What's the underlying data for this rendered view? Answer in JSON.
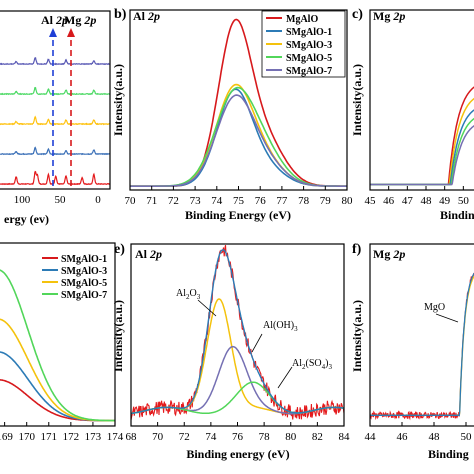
{
  "chart_data": [
    {
      "id": "a",
      "type": "line",
      "panel_label": "",
      "title": "",
      "xlabel": "ergy (ev)",
      "ylabel": "",
      "xlim": [
        -10,
        140
      ],
      "xticks": [
        100,
        50,
        0
      ],
      "reversed_x": true,
      "annotations": [
        {
          "text": "Al 2p",
          "x": 74
        },
        {
          "text": "Mg 2p",
          "x": 50
        }
      ],
      "series": [
        {
          "color": "#e41a1c",
          "offset": 0,
          "peaks": [
            [
              118,
              0.45
            ],
            [
              92,
              0.75
            ],
            [
              89,
              0.55
            ],
            [
              74,
              0.6
            ],
            [
              64,
              0.5
            ],
            [
              50,
              0.5
            ],
            [
              28,
              0.4
            ],
            [
              12,
              0.6
            ]
          ]
        },
        {
          "color": "#3a6fb7",
          "offset": 1,
          "peaks": [
            [
              118,
              0.15
            ],
            [
              92,
              0.4
            ],
            [
              74,
              0.3
            ],
            [
              50,
              0.2
            ],
            [
              12,
              0.25
            ]
          ]
        },
        {
          "color": "#ffc20e",
          "offset": 2,
          "peaks": [
            [
              118,
              0.15
            ],
            [
              92,
              0.45
            ],
            [
              74,
              0.3
            ],
            [
              50,
              0.25
            ],
            [
              12,
              0.25
            ]
          ]
        },
        {
          "color": "#4cd964",
          "offset": 3,
          "peaks": [
            [
              118,
              0.15
            ],
            [
              92,
              0.4
            ],
            [
              74,
              0.3
            ],
            [
              50,
              0.25
            ],
            [
              12,
              0.25
            ]
          ]
        },
        {
          "color": "#5a5ab5",
          "offset": 4,
          "peaks": [
            [
              118,
              0.15
            ],
            [
              92,
              0.4
            ],
            [
              74,
              0.3
            ],
            [
              50,
              0.25
            ],
            [
              12,
              0.2
            ]
          ]
        }
      ]
    },
    {
      "id": "b",
      "type": "line",
      "panel_label": "b)",
      "title": "Al 2p",
      "xlabel": "Binding Energy (eV)",
      "ylabel": "Intensity(a.u.)",
      "xlim": [
        70,
        80
      ],
      "xticks": [
        70,
        71,
        72,
        73,
        74,
        75,
        76,
        77,
        78,
        79,
        80
      ],
      "legend": "top-right",
      "series": [
        {
          "name": "MgAlO",
          "color": "#d7191c",
          "center": 74.8,
          "amp": 1.0,
          "sigma": 0.75,
          "shoulder": 0.3
        },
        {
          "name": "SMgAlO-1",
          "color": "#2c7bb6",
          "center": 74.8,
          "amp": 0.6,
          "sigma": 0.8,
          "shoulder": 0.12
        },
        {
          "name": "SMgAlO-3",
          "color": "#f4c20d",
          "center": 74.8,
          "amp": 0.62,
          "sigma": 0.85,
          "shoulder": 0.15
        },
        {
          "name": "SMgAlO-5",
          "color": "#52d65a",
          "center": 74.8,
          "amp": 0.58,
          "sigma": 0.9,
          "shoulder": 0.2
        },
        {
          "name": "SMgAlO-7",
          "color": "#7570b3",
          "center": 74.8,
          "amp": 0.55,
          "sigma": 0.85,
          "shoulder": 0.15
        }
      ]
    },
    {
      "id": "c",
      "type": "line",
      "panel_label": "c)",
      "title": "Mg 2p",
      "xlabel": "Binding",
      "ylabel": "Intensity(a.u.)",
      "xlim": [
        45,
        51
      ],
      "xticks": [
        45,
        46,
        47,
        48,
        49,
        50
      ],
      "series": [
        {
          "color": "#d7191c",
          "rise": 49.2,
          "scale": 0.72
        },
        {
          "color": "#f4c20d",
          "rise": 49.25,
          "scale": 0.64
        },
        {
          "color": "#2c7bb6",
          "rise": 49.3,
          "scale": 0.56
        },
        {
          "color": "#52d65a",
          "rise": 49.35,
          "scale": 0.5
        },
        {
          "color": "#7570b3",
          "rise": 49.4,
          "scale": 0.45
        }
      ]
    },
    {
      "id": "d",
      "type": "line",
      "panel_label": "",
      "title": "",
      "xlabel": "",
      "ylabel": "",
      "xlim": [
        168.7,
        174
      ],
      "xticks": [
        169,
        170,
        171,
        172,
        173,
        174
      ],
      "legend": "top-right",
      "series": [
        {
          "name": "SMgAlO-1",
          "color": "#d7191c",
          "amp": 0.25
        },
        {
          "name": "SMgAlO-3",
          "color": "#2c7bb6",
          "amp": 0.42
        },
        {
          "name": "SMgAlO-5",
          "color": "#f4c20d",
          "amp": 0.62
        },
        {
          "name": "SMgAlO-7",
          "color": "#52d65a",
          "amp": 0.92
        }
      ]
    },
    {
      "id": "e",
      "type": "line",
      "panel_label": "e)",
      "title": "Al 2p",
      "xlabel": "Binding energy (eV)",
      "ylabel": "Intensity(a.u.)",
      "xlim": [
        68,
        84
      ],
      "xticks": [
        68,
        70,
        72,
        74,
        76,
        78,
        80,
        82,
        84
      ],
      "components": [
        {
          "label": "Al2O3",
          "color": "#f4c20d",
          "center": 74.6,
          "amp": 0.72,
          "sigma": 0.9
        },
        {
          "label": "Al(OH)3",
          "color": "#7570b3",
          "center": 75.6,
          "amp": 0.4,
          "sigma": 1.05
        },
        {
          "label": "Al2(SO4)3",
          "color": "#52d65a",
          "center": 77.2,
          "amp": 0.16,
          "sigma": 1.2
        }
      ],
      "raw_color": "#e41a1c",
      "fit_color": "#2c7bb6"
    },
    {
      "id": "f",
      "type": "line",
      "panel_label": "f)",
      "title": "Mg 2p",
      "xlabel": "Binding",
      "ylabel": "Intensity(a.u.)",
      "xlim": [
        44,
        51
      ],
      "xticks": [
        44,
        46,
        48,
        50
      ],
      "annotations": [
        {
          "text": "MgO"
        }
      ],
      "raw_color": "#e41a1c",
      "fit_color": "#2c7bb6",
      "component_color": "#f4c20d"
    }
  ]
}
